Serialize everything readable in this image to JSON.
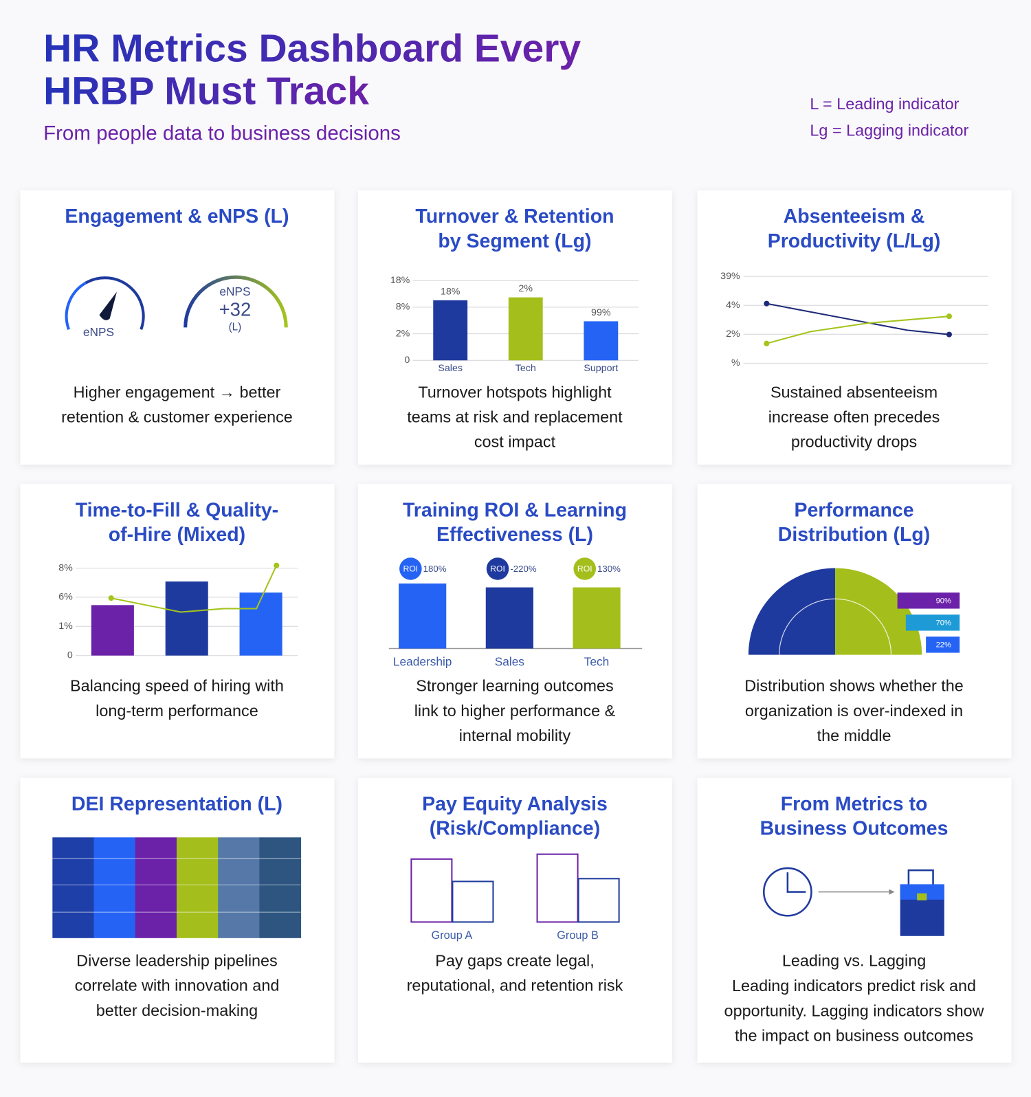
{
  "header": {
    "title": [
      "HR Metrics Dashboard Every",
      "HRBP Must Track"
    ],
    "subtitle": "From people data to business decisions"
  },
  "key": [
    "L = Leading indicator",
    "Lg = Lagging indicator"
  ],
  "chart_data": [
    {
      "type": "gauge",
      "title": [
        "Engagement & eNPS (L)"
      ],
      "gauges": [
        {
          "label": "eNPS"
        },
        {
          "label": "eNPS",
          "value_label": "+32",
          "note": "(L)"
        }
      ],
      "caption": [
        "Higher engagement → better",
        "retention & customer experience"
      ]
    },
    {
      "type": "bar",
      "title": [
        "Turnover & Retention",
        "by Segment (Lg)"
      ],
      "categories": [
        "Sales",
        "Tech",
        "Support"
      ],
      "values": [
        2.26,
        2.37,
        1.47
      ],
      "bar_labels": [
        "18%",
        "2%",
        "99%"
      ],
      "colors": [
        "#1f3a9e",
        "#a4bf1c",
        "#2563f5"
      ],
      "ylim": [
        0,
        3
      ],
      "yticks": [
        0,
        {
          "value": 1,
          "label": "2%"
        },
        {
          "value": 2,
          "label": "8%"
        },
        {
          "value": 3,
          "label": "18%"
        }
      ],
      "grid": true,
      "caption": [
        "Turnover hotspots highlight",
        "teams at risk and replacement",
        "cost impact"
      ]
    },
    {
      "type": "line",
      "title": [
        "Absenteeism &",
        "Productivity (L/Lg)"
      ],
      "xlim": [
        0,
        1
      ],
      "ylim": [
        0,
        3
      ],
      "yticks": [
        {
          "value": 0,
          "label": "%"
        },
        {
          "value": 1,
          "label": "2%"
        },
        {
          "value": 2,
          "label": "4%"
        },
        {
          "value": 3,
          "label": "39%"
        }
      ],
      "grid": true,
      "series": [
        {
          "color": "#1e2a78",
          "x": [
            0,
            0.77,
            1
          ],
          "values": [
            2.06,
            1.14,
            0.99
          ]
        },
        {
          "color": "#a4c41c",
          "x": [
            0,
            0.24,
            0.55,
            1
          ],
          "values": [
            0.68,
            1.09,
            1.38,
            1.62
          ]
        }
      ],
      "caption": [
        "Sustained absenteeism",
        "increase often precedes",
        "productivity drops"
      ]
    },
    {
      "type": "combo",
      "title": [
        "Time-to-Fill & Quality-",
        "of-Hire (Mixed)"
      ],
      "categories": [
        null,
        null,
        null
      ],
      "values": [
        1.73,
        2.54,
        2.16
      ],
      "colors": [
        "#6b21a8",
        "#1f3a9e",
        "#2563f5"
      ],
      "xlim": [
        0,
        3
      ],
      "ylim": [
        0,
        3
      ],
      "yticks": [
        0,
        {
          "value": 1,
          "label": "1%"
        },
        {
          "value": 2,
          "label": "6%"
        },
        {
          "value": 3,
          "label": "8%"
        }
      ],
      "grid": true,
      "line": {
        "color": "#a4c41c",
        "x": [
          0.48,
          1.42,
          2.0,
          2.44,
          2.71
        ],
        "values": [
          1.97,
          1.49,
          1.61,
          1.61,
          3.09
        ]
      },
      "caption": [
        "Balancing speed of hiring with",
        "long-term performance"
      ]
    },
    {
      "type": "badge_bar",
      "title": [
        "Training ROI & Learning",
        "Effectiveness (L)"
      ],
      "categories": [
        "Leadership",
        "Sales",
        "Tech"
      ],
      "values": [
        100,
        94,
        94
      ],
      "ylim": [
        0,
        100
      ],
      "badge": "ROI",
      "bar_labels": [
        "180%",
        "-220%",
        "130%"
      ],
      "colors": [
        "#2563f5",
        "#1f3a9e",
        "#a4bf1c"
      ],
      "caption": [
        "Stronger learning outcomes",
        "link to higher performance &",
        "internal mobility"
      ]
    },
    {
      "type": "distribution",
      "title": [
        "Performance",
        "Distribution (Lg)"
      ],
      "values": [
        90,
        70,
        22
      ],
      "value_labels": [
        "90%",
        "70%",
        "22%"
      ],
      "colors": [
        "#6b21a8",
        "#1e9bd7",
        "#2563f5"
      ],
      "caption": [
        "Distribution shows whether the",
        "organization is over-indexed in",
        "the middle"
      ]
    },
    {
      "type": "mosaic",
      "title": [
        "DEI Representation (L)"
      ],
      "colors": [
        "#1e3fa8",
        "#2563f5",
        "#6b21a8",
        "#a4bf1c",
        "#5578a8",
        "#2d5580"
      ],
      "caption": [
        "Diverse leadership pipelines",
        "correlate with innovation and",
        "better decision-making"
      ]
    },
    {
      "type": "outline_bar",
      "title": [
        "Pay Equity Analysis",
        "(Risk/Compliance)"
      ],
      "categories": [
        "Group A",
        "Group B"
      ],
      "ylim": [
        0,
        100
      ],
      "series": [
        {
          "color": "#6b21a8",
          "values": [
            90,
            97
          ]
        },
        {
          "color": "#1f3a9e",
          "values": [
            58,
            62
          ]
        }
      ],
      "caption": [
        "Pay gaps create legal,",
        "reputational, and retention risk"
      ]
    },
    {
      "type": "flow",
      "title": [
        "From Metrics to",
        "Business Outcomes"
      ],
      "caption_heading": "Leading vs. Lagging",
      "caption": [
        "Leading indicators predict risk and",
        "opportunity. Lagging indicators show",
        "the impact on business outcomes"
      ]
    }
  ]
}
